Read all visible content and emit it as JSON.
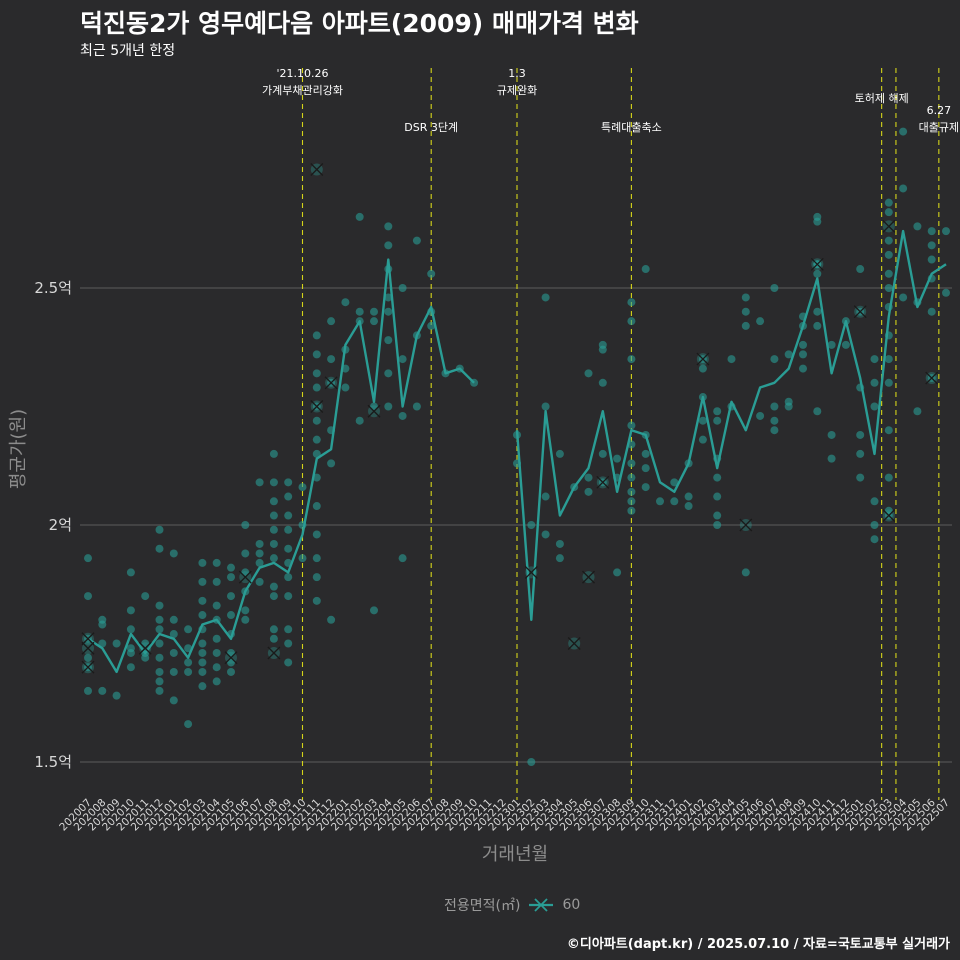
{
  "title": "덕진동2가 영무예다음 아파트(2009) 매매가격 변화",
  "subtitle": "최근 5개년 한정",
  "caption": "©디아파트(dapt.kr) / 2025.07.10 / 자료=국토교통부 실거래가",
  "colors": {
    "background": "#2a2a2c",
    "series": "#2a9d95",
    "vline": "#d4d41a",
    "grid": "#5c5c5c"
  },
  "chart_data": {
    "type": "line",
    "title": "덕진동2가 영무예다음 아파트(2009) 매매가격 변화",
    "subtitle": "최근 5개년 한정",
    "xlabel": "거래년월",
    "ylabel": "평균가(원)",
    "ylim": [
      1.42,
      2.95
    ],
    "yticks": [
      {
        "value": 1.5,
        "label": "1.5억"
      },
      {
        "value": 2.0,
        "label": "2억"
      },
      {
        "value": 2.5,
        "label": "2.5억"
      }
    ],
    "categories": [
      "202007",
      "202008",
      "202009",
      "202010",
      "202011",
      "202012",
      "202101",
      "202102",
      "202103",
      "202104",
      "202105",
      "202106",
      "202107",
      "202108",
      "202109",
      "202110",
      "202111",
      "202112",
      "202201",
      "202202",
      "202203",
      "202204",
      "202205",
      "202206",
      "202207",
      "202208",
      "202209",
      "202210",
      "202211",
      "202212",
      "202301",
      "202302",
      "202303",
      "202304",
      "202305",
      "202306",
      "202307",
      "202308",
      "202309",
      "202310",
      "202311",
      "202312",
      "202401",
      "202402",
      "202403",
      "202404",
      "202405",
      "202406",
      "202407",
      "202408",
      "202409",
      "202410",
      "202411",
      "202412",
      "202501",
      "202502",
      "202503",
      "202504",
      "202505",
      "202506",
      "202507"
    ],
    "grid": true,
    "legend": {
      "title": "전용면적(㎡)",
      "entries": [
        "60"
      ],
      "position": "bottom"
    },
    "series": [
      {
        "name": "60",
        "values": [
          1.76,
          1.74,
          1.69,
          1.77,
          1.73,
          1.77,
          1.76,
          1.72,
          1.79,
          1.8,
          1.76,
          1.86,
          1.91,
          1.92,
          1.9,
          1.98,
          2.14,
          2.16,
          2.38,
          2.43,
          2.26,
          2.56,
          2.25,
          2.4,
          2.46,
          2.32,
          2.33,
          2.3,
          null,
          null,
          2.2,
          1.8,
          2.24,
          2.02,
          2.08,
          2.12,
          2.24,
          2.07,
          2.2,
          2.19,
          2.09,
          2.07,
          2.13,
          2.27,
          2.12,
          2.26,
          2.2,
          2.29,
          2.3,
          2.33,
          2.42,
          2.52,
          2.32,
          2.43,
          2.31,
          2.15,
          2.44,
          2.62,
          2.46,
          2.53,
          2.55
        ]
      }
    ],
    "scatter": [
      [
        0,
        1.93
      ],
      [
        0,
        1.85
      ],
      [
        0,
        1.76
      ],
      [
        0,
        1.72
      ],
      [
        0,
        1.7
      ],
      [
        0,
        1.65
      ],
      [
        1,
        1.8
      ],
      [
        1,
        1.79
      ],
      [
        1,
        1.75
      ],
      [
        1,
        1.65
      ],
      [
        2,
        1.64
      ],
      [
        2,
        1.75
      ],
      [
        3,
        1.9
      ],
      [
        3,
        1.82
      ],
      [
        3,
        1.78
      ],
      [
        3,
        1.74
      ],
      [
        3,
        1.73
      ],
      [
        3,
        1.7
      ],
      [
        4,
        1.85
      ],
      [
        4,
        1.75
      ],
      [
        4,
        1.73
      ],
      [
        4,
        1.72
      ],
      [
        5,
        1.99
      ],
      [
        5,
        1.95
      ],
      [
        5,
        1.83
      ],
      [
        5,
        1.8
      ],
      [
        5,
        1.78
      ],
      [
        5,
        1.75
      ],
      [
        5,
        1.72
      ],
      [
        5,
        1.69
      ],
      [
        5,
        1.67
      ],
      [
        5,
        1.65
      ],
      [
        6,
        1.94
      ],
      [
        6,
        1.8
      ],
      [
        6,
        1.77
      ],
      [
        6,
        1.73
      ],
      [
        6,
        1.69
      ],
      [
        6,
        1.63
      ],
      [
        7,
        1.78
      ],
      [
        7,
        1.74
      ],
      [
        7,
        1.71
      ],
      [
        7,
        1.69
      ],
      [
        7,
        1.58
      ],
      [
        8,
        1.92
      ],
      [
        8,
        1.88
      ],
      [
        8,
        1.84
      ],
      [
        8,
        1.81
      ],
      [
        8,
        1.78
      ],
      [
        8,
        1.75
      ],
      [
        8,
        1.73
      ],
      [
        8,
        1.71
      ],
      [
        8,
        1.69
      ],
      [
        8,
        1.66
      ],
      [
        9,
        1.92
      ],
      [
        9,
        1.88
      ],
      [
        9,
        1.83
      ],
      [
        9,
        1.8
      ],
      [
        9,
        1.76
      ],
      [
        9,
        1.73
      ],
      [
        9,
        1.7
      ],
      [
        9,
        1.67
      ],
      [
        10,
        1.91
      ],
      [
        10,
        1.89
      ],
      [
        10,
        1.85
      ],
      [
        10,
        1.81
      ],
      [
        10,
        1.77
      ],
      [
        10,
        1.73
      ],
      [
        10,
        1.71
      ],
      [
        10,
        1.69
      ],
      [
        11,
        2.0
      ],
      [
        11,
        1.94
      ],
      [
        11,
        1.9
      ],
      [
        11,
        1.86
      ],
      [
        11,
        1.82
      ],
      [
        11,
        1.8
      ],
      [
        12,
        2.09
      ],
      [
        12,
        1.96
      ],
      [
        12,
        1.94
      ],
      [
        12,
        1.92
      ],
      [
        12,
        1.88
      ],
      [
        13,
        2.15
      ],
      [
        13,
        2.09
      ],
      [
        13,
        2.05
      ],
      [
        13,
        2.02
      ],
      [
        13,
        1.99
      ],
      [
        13,
        1.96
      ],
      [
        13,
        1.93
      ],
      [
        13,
        1.87
      ],
      [
        13,
        1.85
      ],
      [
        13,
        1.78
      ],
      [
        13,
        1.76
      ],
      [
        14,
        2.09
      ],
      [
        14,
        2.06
      ],
      [
        14,
        2.02
      ],
      [
        14,
        1.99
      ],
      [
        14,
        1.95
      ],
      [
        14,
        1.92
      ],
      [
        14,
        1.89
      ],
      [
        14,
        1.85
      ],
      [
        14,
        1.78
      ],
      [
        14,
        1.75
      ],
      [
        14,
        1.71
      ],
      [
        15,
        2.08
      ],
      [
        15,
        2.0
      ],
      [
        15,
        1.93
      ],
      [
        16,
        2.4
      ],
      [
        16,
        2.36
      ],
      [
        16,
        2.32
      ],
      [
        16,
        2.29
      ],
      [
        16,
        2.25
      ],
      [
        16,
        2.22
      ],
      [
        16,
        2.18
      ],
      [
        16,
        2.15
      ],
      [
        16,
        2.1
      ],
      [
        16,
        2.04
      ],
      [
        16,
        1.98
      ],
      [
        16,
        1.93
      ],
      [
        16,
        1.89
      ],
      [
        16,
        1.84
      ],
      [
        17,
        2.43
      ],
      [
        17,
        2.35
      ],
      [
        17,
        2.3
      ],
      [
        17,
        2.2
      ],
      [
        17,
        2.13
      ],
      [
        17,
        1.8
      ],
      [
        18,
        2.47
      ],
      [
        18,
        2.37
      ],
      [
        18,
        2.33
      ],
      [
        18,
        2.29
      ],
      [
        19,
        2.65
      ],
      [
        19,
        2.45
      ],
      [
        19,
        2.43
      ],
      [
        19,
        2.22
      ],
      [
        20,
        2.45
      ],
      [
        20,
        2.43
      ],
      [
        20,
        2.25
      ],
      [
        20,
        1.82
      ],
      [
        21,
        2.63
      ],
      [
        21,
        2.59
      ],
      [
        21,
        2.54
      ],
      [
        21,
        2.48
      ],
      [
        21,
        2.45
      ],
      [
        21,
        2.39
      ],
      [
        21,
        2.32
      ],
      [
        21,
        2.25
      ],
      [
        22,
        2.5
      ],
      [
        22,
        2.35
      ],
      [
        22,
        2.23
      ],
      [
        22,
        1.93
      ],
      [
        23,
        2.6
      ],
      [
        23,
        2.4
      ],
      [
        23,
        2.25
      ],
      [
        24,
        2.53
      ],
      [
        24,
        2.45
      ],
      [
        24,
        2.42
      ],
      [
        25,
        2.32
      ],
      [
        26,
        2.33
      ],
      [
        27,
        2.3
      ],
      [
        30,
        2.19
      ],
      [
        30,
        2.13
      ],
      [
        31,
        2.0
      ],
      [
        31,
        1.5
      ],
      [
        32,
        2.48
      ],
      [
        32,
        2.25
      ],
      [
        32,
        2.06
      ],
      [
        32,
        1.98
      ],
      [
        33,
        2.15
      ],
      [
        33,
        1.96
      ],
      [
        33,
        1.93
      ],
      [
        34,
        2.08
      ],
      [
        35,
        2.32
      ],
      [
        35,
        2.1
      ],
      [
        35,
        2.07
      ],
      [
        36,
        2.38
      ],
      [
        36,
        2.37
      ],
      [
        36,
        2.3
      ],
      [
        36,
        2.15
      ],
      [
        36,
        2.09
      ],
      [
        37,
        2.14
      ],
      [
        37,
        2.1
      ],
      [
        37,
        1.9
      ],
      [
        38,
        2.47
      ],
      [
        38,
        2.43
      ],
      [
        38,
        2.35
      ],
      [
        38,
        2.21
      ],
      [
        38,
        2.17
      ],
      [
        38,
        2.13
      ],
      [
        38,
        2.1
      ],
      [
        38,
        2.07
      ],
      [
        38,
        2.05
      ],
      [
        38,
        2.03
      ],
      [
        39,
        2.54
      ],
      [
        39,
        2.19
      ],
      [
        39,
        2.15
      ],
      [
        39,
        2.12
      ],
      [
        39,
        2.08
      ],
      [
        40,
        2.05
      ],
      [
        41,
        2.09
      ],
      [
        41,
        2.05
      ],
      [
        42,
        2.13
      ],
      [
        42,
        2.06
      ],
      [
        42,
        2.04
      ],
      [
        43,
        2.35
      ],
      [
        43,
        2.33
      ],
      [
        43,
        2.27
      ],
      [
        43,
        2.22
      ],
      [
        43,
        2.18
      ],
      [
        44,
        2.24
      ],
      [
        44,
        2.22
      ],
      [
        44,
        2.14
      ],
      [
        44,
        2.1
      ],
      [
        44,
        2.06
      ],
      [
        44,
        2.02
      ],
      [
        44,
        2.0
      ],
      [
        45,
        2.35
      ],
      [
        45,
        2.25
      ],
      [
        46,
        2.48
      ],
      [
        46,
        2.45
      ],
      [
        46,
        2.42
      ],
      [
        46,
        1.9
      ],
      [
        47,
        2.43
      ],
      [
        47,
        2.23
      ],
      [
        48,
        2.5
      ],
      [
        48,
        2.35
      ],
      [
        48,
        2.25
      ],
      [
        48,
        2.22
      ],
      [
        48,
        2.2
      ],
      [
        49,
        2.36
      ],
      [
        49,
        2.26
      ],
      [
        49,
        2.25
      ],
      [
        50,
        2.44
      ],
      [
        50,
        2.42
      ],
      [
        50,
        2.38
      ],
      [
        50,
        2.36
      ],
      [
        50,
        2.33
      ],
      [
        51,
        2.65
      ],
      [
        51,
        2.64
      ],
      [
        51,
        2.55
      ],
      [
        51,
        2.55
      ],
      [
        51,
        2.53
      ],
      [
        51,
        2.45
      ],
      [
        51,
        2.42
      ],
      [
        51,
        2.24
      ],
      [
        52,
        2.38
      ],
      [
        52,
        2.19
      ],
      [
        52,
        2.14
      ],
      [
        53,
        2.43
      ],
      [
        53,
        2.38
      ],
      [
        54,
        2.54
      ],
      [
        54,
        2.45
      ],
      [
        54,
        2.29
      ],
      [
        54,
        2.19
      ],
      [
        54,
        2.15
      ],
      [
        54,
        2.1
      ],
      [
        55,
        2.35
      ],
      [
        55,
        2.3
      ],
      [
        55,
        2.25
      ],
      [
        55,
        2.05
      ],
      [
        55,
        2.0
      ],
      [
        55,
        1.97
      ],
      [
        56,
        2.68
      ],
      [
        56,
        2.66
      ],
      [
        56,
        2.6
      ],
      [
        56,
        2.57
      ],
      [
        56,
        2.53
      ],
      [
        56,
        2.5
      ],
      [
        56,
        2.46
      ],
      [
        56,
        2.4
      ],
      [
        56,
        2.35
      ],
      [
        56,
        2.3
      ],
      [
        56,
        2.2
      ],
      [
        56,
        2.1
      ],
      [
        56,
        2.03
      ],
      [
        56,
        2.02
      ],
      [
        57,
        2.83
      ],
      [
        57,
        2.71
      ],
      [
        57,
        2.48
      ],
      [
        58,
        2.63
      ],
      [
        58,
        2.47
      ],
      [
        58,
        2.24
      ],
      [
        59,
        2.62
      ],
      [
        59,
        2.59
      ],
      [
        59,
        2.56
      ],
      [
        59,
        2.52
      ],
      [
        59,
        2.45
      ],
      [
        59,
        2.31
      ],
      [
        60,
        2.62
      ],
      [
        60,
        2.49
      ]
    ],
    "crosses": [
      [
        0,
        1.76
      ],
      [
        0,
        1.74
      ],
      [
        0,
        1.7
      ],
      [
        4,
        1.74
      ],
      [
        10,
        1.72
      ],
      [
        11,
        1.89
      ],
      [
        13,
        1.73
      ],
      [
        16,
        2.75
      ],
      [
        16,
        2.25
      ],
      [
        17,
        2.3
      ],
      [
        20,
        2.24
      ],
      [
        31,
        1.9
      ],
      [
        34,
        1.75
      ],
      [
        35,
        1.89
      ],
      [
        36,
        2.09
      ],
      [
        43,
        2.35
      ],
      [
        46,
        2.0
      ],
      [
        51,
        2.55
      ],
      [
        54,
        2.45
      ],
      [
        56,
        2.63
      ],
      [
        56,
        2.02
      ],
      [
        59,
        2.31
      ]
    ],
    "events": [
      {
        "x": 15.0,
        "lines": [
          "'21.10.26",
          "가계부채관리강화"
        ],
        "row": 0
      },
      {
        "x": 24.0,
        "lines": [
          "DSR 3단계"
        ],
        "row": 1
      },
      {
        "x": 30.0,
        "lines": [
          "1.3",
          "규제완화"
        ],
        "row": 0
      },
      {
        "x": 38.0,
        "lines": [
          "특례대출축소"
        ],
        "row": 1
      },
      {
        "x": 55.5,
        "lines": [
          "토허제 해제"
        ],
        "row": 0
      },
      {
        "x": 56.5,
        "lines": [],
        "row": 0
      },
      {
        "x": 59.5,
        "lines": [
          "6.27",
          "대출규제"
        ],
        "row": 1
      }
    ]
  }
}
